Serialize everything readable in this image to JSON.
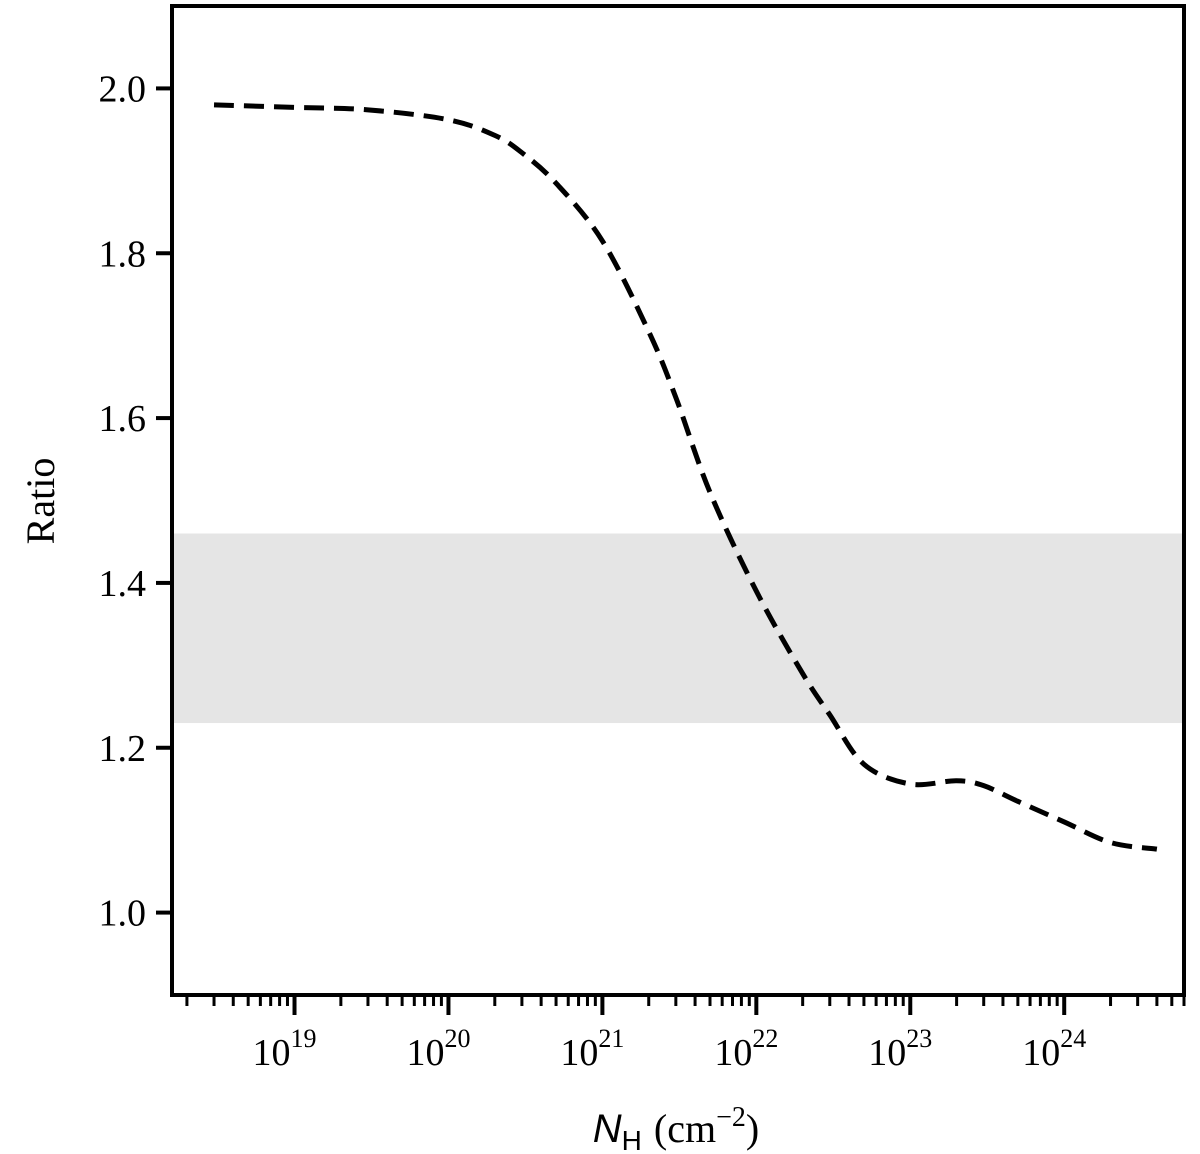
{
  "chart_data": {
    "type": "line",
    "title": "",
    "xlabel": {
      "symbol": "N",
      "subscript": "H",
      "unit": "(cm",
      "unit_exp": "−2",
      "unit_close": ")"
    },
    "ylabel": "Ratio",
    "x_scale": "log",
    "xlim": [
      1.6e+18,
      6e+24
    ],
    "ylim": [
      0.9,
      2.1
    ],
    "x_ticks": [
      {
        "value": 1e+19,
        "base": "10",
        "exp": "19"
      },
      {
        "value": 1e+20,
        "base": "10",
        "exp": "20"
      },
      {
        "value": 1e+21,
        "base": "10",
        "exp": "21"
      },
      {
        "value": 1e+22,
        "base": "10",
        "exp": "22"
      },
      {
        "value": 1e+23,
        "base": "10",
        "exp": "23"
      },
      {
        "value": 1e+24,
        "base": "10",
        "exp": "24"
      }
    ],
    "y_ticks": [
      {
        "value": 1.0,
        "label": "1.0"
      },
      {
        "value": 1.2,
        "label": "1.2"
      },
      {
        "value": 1.4,
        "label": "1.4"
      },
      {
        "value": 1.6,
        "label": "1.6"
      },
      {
        "value": 1.8,
        "label": "1.8"
      },
      {
        "value": 2.0,
        "label": "2.0"
      }
    ],
    "band": {
      "y_low": 1.23,
      "y_high": 1.46,
      "color": "#e5e5e5"
    },
    "grid": false,
    "legend": "none",
    "series": [
      {
        "style": "dashed",
        "color": "#000000",
        "x": [
          3e+18,
          1e+19,
          3e+19,
          1e+20,
          2e+20,
          3e+20,
          5e+20,
          1e+21,
          2e+21,
          3e+21,
          5e+21,
          1e+22,
          2e+22,
          3e+22,
          5e+22,
          1e+23,
          2e+23,
          3e+23,
          5e+23,
          1e+24,
          2e+24,
          4e+24
        ],
        "y": [
          1.98,
          1.977,
          1.974,
          1.962,
          1.943,
          1.922,
          1.885,
          1.815,
          1.705,
          1.625,
          1.51,
          1.39,
          1.29,
          1.24,
          1.18,
          1.156,
          1.16,
          1.154,
          1.135,
          1.11,
          1.085,
          1.077
        ]
      }
    ]
  }
}
